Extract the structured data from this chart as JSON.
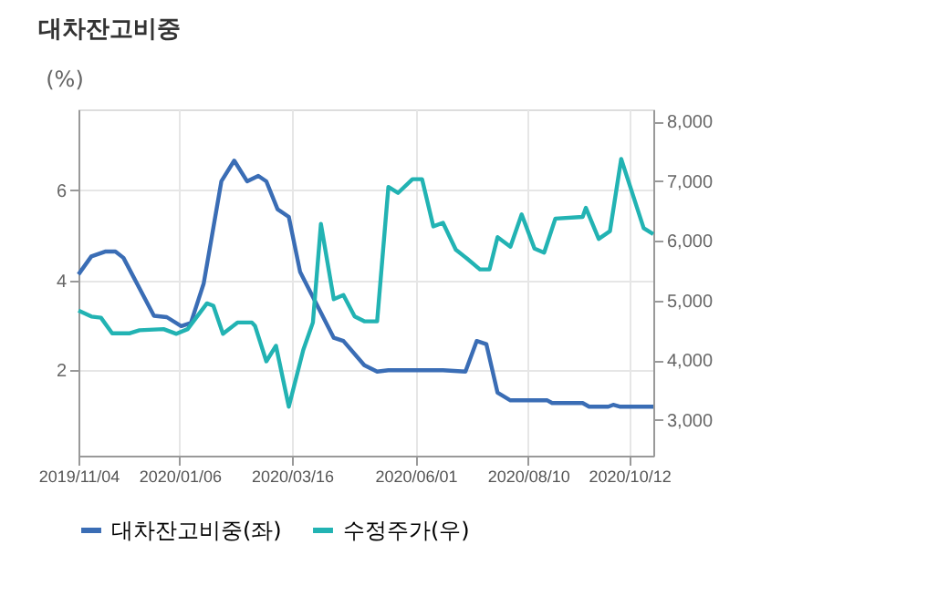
{
  "chart_data": {
    "type": "line",
    "title": "대차잔고비중",
    "ylabel": "(%)",
    "xlim": [
      "2019-11-04",
      "2020-10-27"
    ],
    "xticks": [
      {
        "value": "2019-11-04",
        "label": "2019/11/04"
      },
      {
        "value": "2020-01-06",
        "label": "2020/01/06"
      },
      {
        "value": "2020-03-16",
        "label": "2020/03/16"
      },
      {
        "value": "2020-06-01",
        "label": "2020/06/01"
      },
      {
        "value": "2020-08-10",
        "label": "2020/08/10"
      },
      {
        "value": "2020-10-12",
        "label": "2020/10/12"
      }
    ],
    "ylim": [
      0.1,
      7.8
    ],
    "yticks": [
      2,
      4,
      6
    ],
    "y2lim": [
      2400,
      8200
    ],
    "y2ticks": [
      {
        "value": 3000,
        "label": "3,000"
      },
      {
        "value": 4000,
        "label": "4,000"
      },
      {
        "value": 5000,
        "label": "5,000"
      },
      {
        "value": 6000,
        "label": "6,000"
      },
      {
        "value": 7000,
        "label": "7,000"
      },
      {
        "value": 8000,
        "label": "8,000"
      }
    ],
    "grid": true,
    "legend": "bottom",
    "series": [
      {
        "name": "대차잔고비중(좌)",
        "color": "#3a6db5",
        "x": [
          "2019-11-04",
          "2019-11-12",
          "2019-11-21",
          "2019-11-27",
          "2019-12-02",
          "2019-12-21",
          "2019-12-29",
          "2020-01-07",
          "2020-01-13",
          "2020-01-21",
          "2020-02-01",
          "2020-02-09",
          "2020-02-17",
          "2020-02-24",
          "2020-02-29",
          "2020-03-07",
          "2020-03-14",
          "2020-03-21",
          "2020-04-11",
          "2020-04-17",
          "2020-04-30",
          "2020-05-08",
          "2020-05-15",
          "2020-06-07",
          "2020-06-18",
          "2020-07-02",
          "2020-07-09",
          "2020-07-15",
          "2020-07-22",
          "2020-07-30",
          "2020-08-22",
          "2020-08-25",
          "2020-09-13",
          "2020-09-17",
          "2020-09-29",
          "2020-10-02",
          "2020-10-06",
          "2020-10-27"
        ],
        "values": [
          4.13,
          4.53,
          4.64,
          4.64,
          4.5,
          3.21,
          3.18,
          2.98,
          3.05,
          3.93,
          6.2,
          6.66,
          6.2,
          6.32,
          6.2,
          5.58,
          5.41,
          4.19,
          2.72,
          2.65,
          2.11,
          1.97,
          2.0,
          2.0,
          2.0,
          1.97,
          2.65,
          2.58,
          1.5,
          1.33,
          1.33,
          1.27,
          1.27,
          1.19,
          1.19,
          1.23,
          1.19,
          1.19
        ]
      },
      {
        "name": "수정주가(우)",
        "color": "#22b3b3",
        "axis": "y2",
        "x": [
          "2019-11-04",
          "2019-11-12",
          "2019-11-18",
          "2019-11-25",
          "2019-12-06",
          "2019-12-12",
          "2019-12-27",
          "2020-01-04",
          "2020-01-11",
          "2020-01-23",
          "2020-01-27",
          "2020-02-02",
          "2020-02-11",
          "2020-02-20",
          "2020-02-22",
          "2020-02-29",
          "2020-03-06",
          "2020-03-14",
          "2020-03-23",
          "2020-03-29",
          "2020-04-03",
          "2020-04-11",
          "2020-04-17",
          "2020-04-24",
          "2020-04-30",
          "2020-05-08",
          "2020-05-15",
          "2020-05-21",
          "2020-05-30",
          "2020-06-05",
          "2020-06-12",
          "2020-06-18",
          "2020-06-26",
          "2020-07-03",
          "2020-07-11",
          "2020-07-17",
          "2020-07-22",
          "2020-07-30",
          "2020-08-06",
          "2020-08-14",
          "2020-08-20",
          "2020-08-27",
          "2020-09-13",
          "2020-09-15",
          "2020-09-23",
          "2020-09-30",
          "2020-10-07",
          "2020-10-21",
          "2020-10-27"
        ],
        "values": [
          4830,
          4730,
          4710,
          4450,
          4450,
          4500,
          4520,
          4440,
          4520,
          4950,
          4910,
          4440,
          4630,
          4630,
          4570,
          3980,
          4240,
          3220,
          4170,
          4630,
          6280,
          5020,
          5090,
          4730,
          4650,
          4650,
          6900,
          6800,
          7030,
          7030,
          6240,
          6300,
          5850,
          5700,
          5520,
          5520,
          6060,
          5900,
          6440,
          5870,
          5800,
          6370,
          6400,
          6550,
          6030,
          6160,
          7370,
          6210,
          6110
        ]
      }
    ]
  }
}
